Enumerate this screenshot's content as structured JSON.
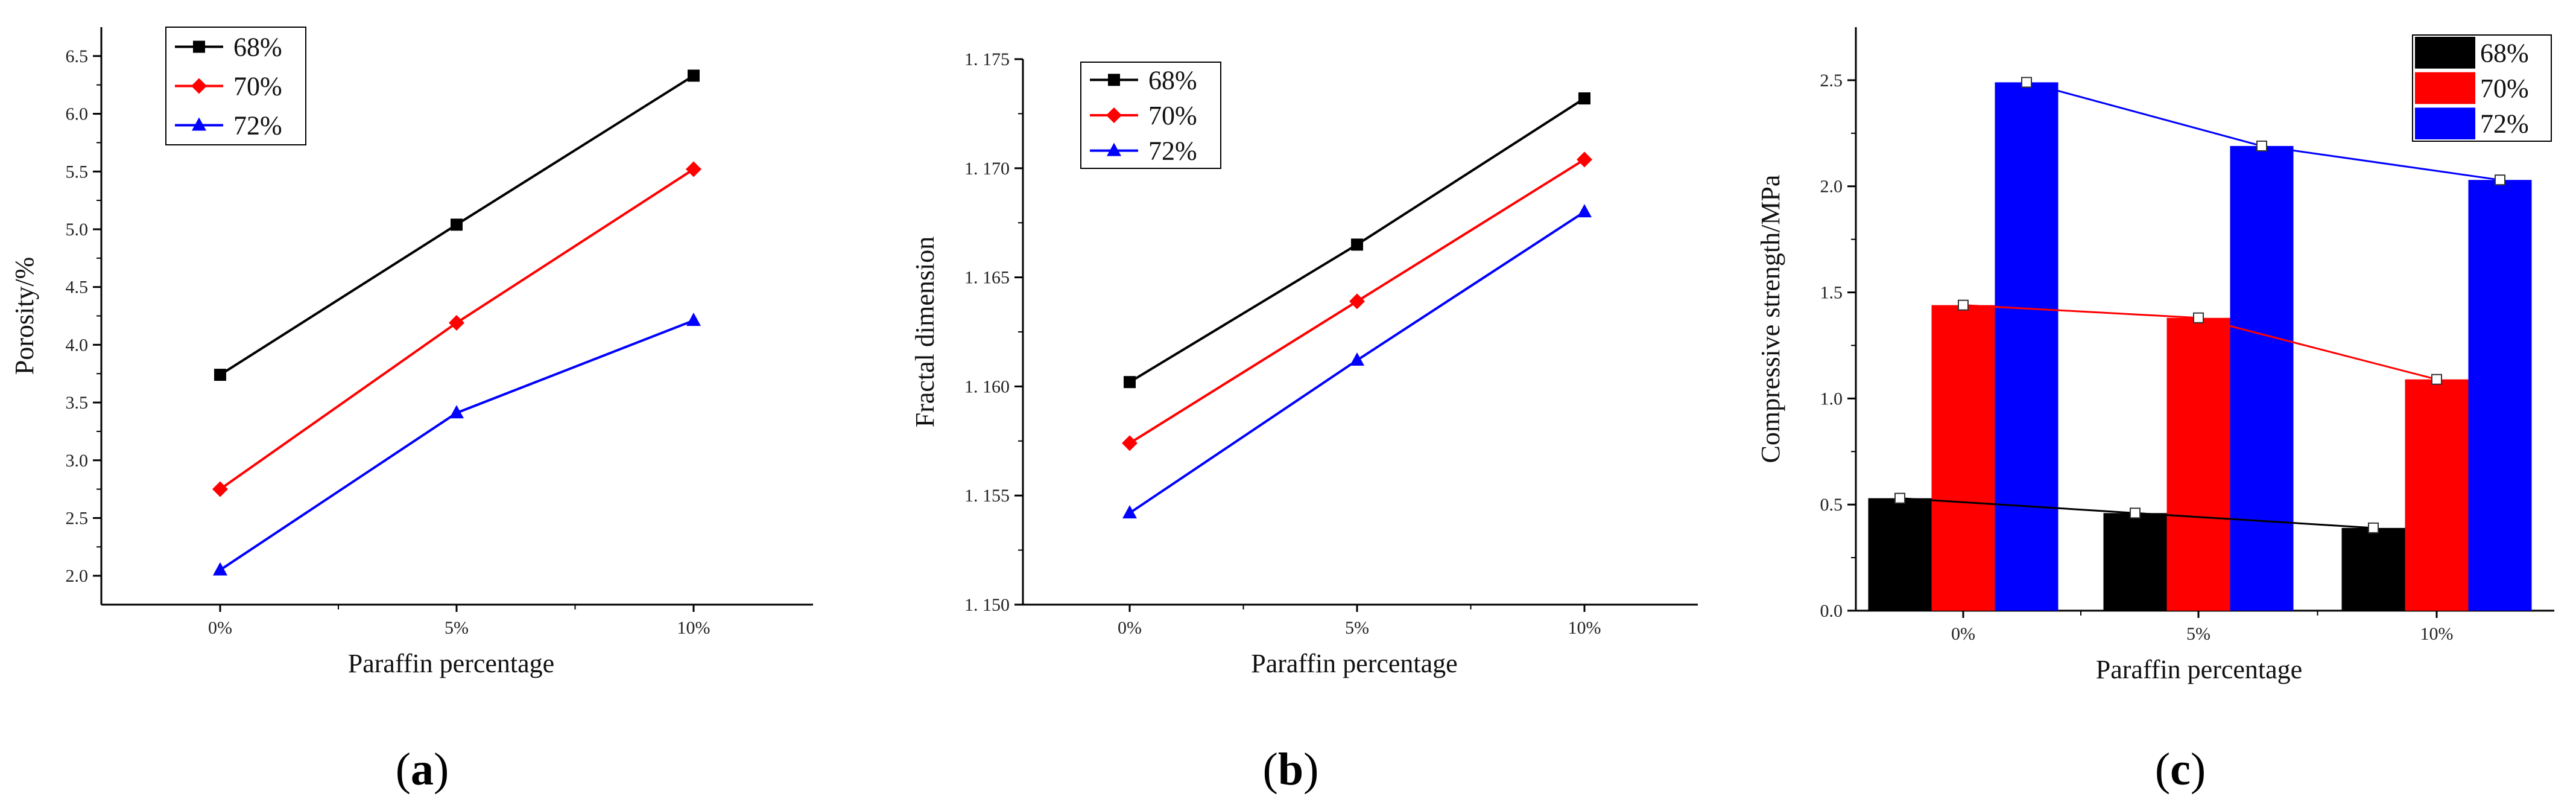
{
  "chart_data": [
    {
      "type": "line",
      "caption": "a",
      "categories": [
        "0%",
        "5%",
        "10%"
      ],
      "series": [
        {
          "name": "68%",
          "values": [
            3.74,
            5.04,
            6.33
          ],
          "color": "#000000",
          "marker": "square"
        },
        {
          "name": "70%",
          "values": [
            2.75,
            4.19,
            5.52
          ],
          "color": "#ff0000",
          "marker": "diamond"
        },
        {
          "name": "72%",
          "values": [
            2.05,
            3.41,
            4.21
          ],
          "color": "#0000ff",
          "marker": "triangle"
        }
      ],
      "xlabel": "Paraffin percentage",
      "ylabel": "Porosity/%",
      "ylim": [
        1.75,
        6.75
      ],
      "yticks": [
        2.0,
        2.5,
        3.0,
        3.5,
        4.0,
        4.5,
        5.0,
        5.5,
        6.0,
        6.5
      ],
      "ytick_labels": [
        "2.0",
        "2.5",
        "3.0",
        "3.5",
        "4.0",
        "4.5",
        "5.0",
        "5.5",
        "6.0",
        "6.5"
      ],
      "legend_position": "top-left"
    },
    {
      "type": "line",
      "caption": "b",
      "categories": [
        "0%",
        "5%",
        "10%"
      ],
      "series": [
        {
          "name": "68%",
          "values": [
            1.1602,
            1.1665,
            1.1732
          ],
          "color": "#000000",
          "marker": "square"
        },
        {
          "name": "70%",
          "values": [
            1.1574,
            1.1639,
            1.1704
          ],
          "color": "#ff0000",
          "marker": "diamond"
        },
        {
          "name": "72%",
          "values": [
            1.1542,
            1.1612,
            1.168
          ],
          "color": "#0000ff",
          "marker": "triangle"
        }
      ],
      "xlabel": "Paraffin percentage",
      "ylabel": "Fractal dimension",
      "ylim": [
        1.15,
        1.175
      ],
      "yticks": [
        1.15,
        1.155,
        1.16,
        1.165,
        1.17,
        1.175
      ],
      "ytick_labels": [
        "1. 150",
        "1. 155",
        "1. 160",
        "1. 165",
        "1. 170",
        "1. 175"
      ],
      "legend_position": "top-left"
    },
    {
      "type": "bar",
      "caption": "c",
      "categories": [
        "0%",
        "5%",
        "10%"
      ],
      "series": [
        {
          "name": "68%",
          "values": [
            0.53,
            0.46,
            0.39
          ],
          "color": "#000000"
        },
        {
          "name": "70%",
          "values": [
            1.44,
            1.38,
            1.09
          ],
          "color": "#ff0000"
        },
        {
          "name": "72%",
          "values": [
            2.49,
            2.19,
            2.03
          ],
          "color": "#0000ff"
        }
      ],
      "xlabel": "Paraffin percentage",
      "ylabel": "Compressive strength/MPa",
      "ylim": [
        0.0,
        2.75
      ],
      "yticks": [
        0.0,
        0.5,
        1.0,
        1.5,
        2.0,
        2.5
      ],
      "ytick_labels": [
        "0.0",
        "0.5",
        "1.0",
        "1.5",
        "2.0",
        "2.5"
      ],
      "legend_position": "top-right",
      "overlay": "trend lines with open square markers connecting bar tops"
    }
  ]
}
